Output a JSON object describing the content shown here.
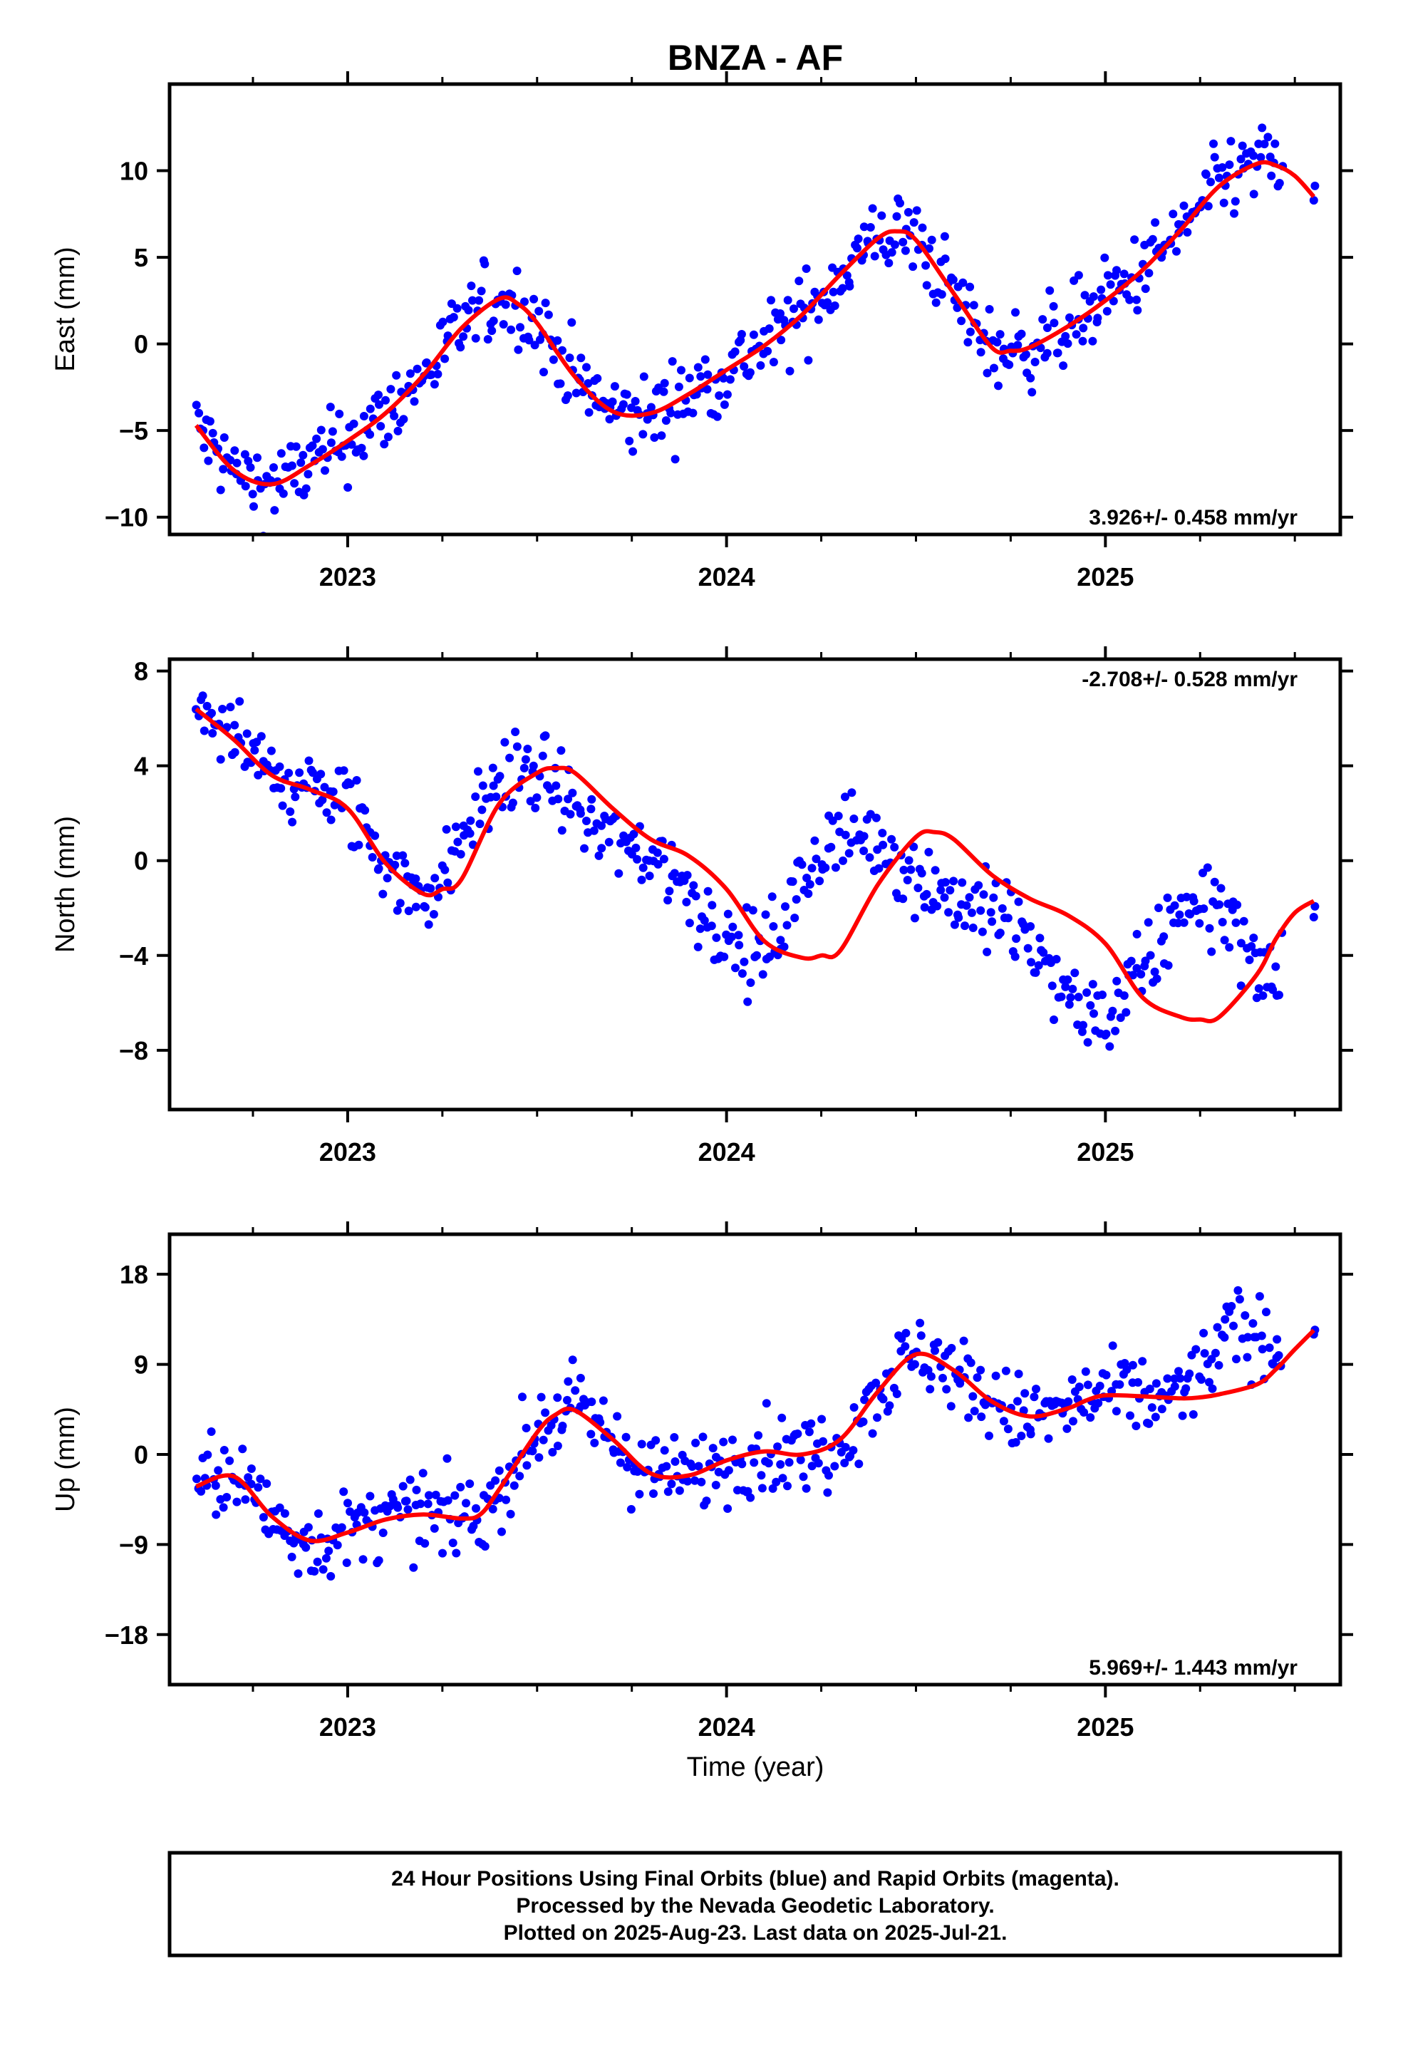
{
  "title": "BNZA - AF",
  "colors": {
    "final_orbit_points": "#0000ff",
    "fit_curve": "#ff0000",
    "frame": "#000000"
  },
  "xlabel": "Time (year)",
  "x_tick_labels": [
    "2023",
    "2024",
    "2025"
  ],
  "footer": {
    "line1": "24 Hour Positions Using Final Orbits (blue) and Rapid Orbits (magenta).",
    "line2": "Processed by the Nevada Geodetic Laboratory.",
    "line3": "Plotted on 2025-Aug-23. Last data on 2025-Jul-21."
  },
  "chart_data": [
    {
      "type": "scatter",
      "ylabel": "East (mm)",
      "rate_label": "3.926+/- 0.458 mm/yr",
      "rate_position": "bottom-right",
      "xlim": [
        2022.53,
        2025.62
      ],
      "ylim": [
        -11,
        15
      ],
      "yticks": [
        -10,
        -5,
        0,
        5,
        10
      ],
      "ytick_labels": [
        "−10",
        "−5",
        "0",
        "5",
        "10"
      ],
      "grid": false,
      "series": [
        {
          "kind": "points",
          "x": [
            2022.6,
            2022.65,
            2022.7,
            2022.75,
            2022.8,
            2022.85,
            2022.9,
            2022.95,
            2023.0,
            2023.05,
            2023.1,
            2023.15,
            2023.2,
            2023.25,
            2023.3,
            2023.35,
            2023.4,
            2023.45,
            2023.5,
            2023.55,
            2023.6,
            2023.65,
            2023.7,
            2023.75,
            2023.8,
            2023.85,
            2023.9,
            2023.95,
            2024.0,
            2024.05,
            2024.1,
            2024.15,
            2024.2,
            2024.25,
            2024.3,
            2024.35,
            2024.4,
            2024.45,
            2024.5,
            2024.55,
            2024.6,
            2024.65,
            2024.7,
            2024.75,
            2024.8,
            2024.85,
            2024.9,
            2024.95,
            2025.0,
            2025.05,
            2025.1,
            2025.15,
            2025.2,
            2025.25,
            2025.3,
            2025.35,
            2025.4,
            2025.45,
            2025.55
          ],
          "y": [
            -4.7,
            -6.2,
            -7.3,
            -8.0,
            -8.1,
            -7.7,
            -7.0,
            -6.3,
            -5.6,
            -4.9,
            -4.0,
            -3.0,
            -1.8,
            -0.5,
            0.9,
            2.0,
            2.6,
            2.3,
            1.2,
            -0.4,
            -1.9,
            -3.1,
            -3.9,
            -4.2,
            -4.0,
            -3.5,
            -2.9,
            -2.2,
            -1.5,
            -0.8,
            -0.1,
            0.7,
            1.7,
            2.8,
            4.0,
            5.2,
            6.1,
            6.5,
            6.0,
            4.6,
            2.9,
            1.1,
            -0.2,
            -0.4,
            -0.2,
            0.3,
            1.0,
            1.8,
            2.5,
            3.4,
            4.3,
            5.4,
            6.6,
            7.9,
            9.1,
            10.0,
            10.4,
            10.3,
            8.5
          ]
        },
        {
          "kind": "fit",
          "x": [
            2022.6,
            2022.7,
            2022.8,
            2022.9,
            2023.0,
            2023.1,
            2023.2,
            2023.3,
            2023.4,
            2023.45,
            2023.5,
            2023.6,
            2023.7,
            2023.8,
            2023.9,
            2024.0,
            2024.1,
            2024.2,
            2024.3,
            2024.4,
            2024.45,
            2024.5,
            2024.6,
            2024.7,
            2024.75,
            2024.8,
            2024.9,
            2025.0,
            2025.1,
            2025.2,
            2025.3,
            2025.4,
            2025.45,
            2025.5,
            2025.55
          ],
          "y": [
            -4.7,
            -7.3,
            -8.1,
            -7.0,
            -5.6,
            -4.0,
            -1.8,
            0.9,
            2.6,
            2.3,
            1.2,
            -1.9,
            -3.9,
            -4.0,
            -2.9,
            -1.5,
            -0.1,
            1.7,
            4.0,
            6.1,
            6.5,
            6.0,
            2.9,
            -0.2,
            -0.4,
            -0.2,
            1.0,
            2.5,
            4.3,
            6.6,
            9.1,
            10.4,
            10.3,
            9.7,
            8.5
          ]
        }
      ]
    },
    {
      "type": "scatter",
      "ylabel": "North (mm)",
      "rate_label": "-2.708+/- 0.528 mm/yr",
      "rate_position": "top-right",
      "xlim": [
        2022.53,
        2025.62
      ],
      "ylim": [
        -10.5,
        8.5
      ],
      "yticks": [
        -8,
        -4,
        0,
        4,
        8
      ],
      "ytick_labels": [
        "−8",
        "−4",
        "0",
        "4",
        "8"
      ],
      "grid": false,
      "series": [
        {
          "kind": "points",
          "x": [
            2022.6,
            2022.65,
            2022.7,
            2022.75,
            2022.8,
            2022.85,
            2022.9,
            2022.95,
            2023.0,
            2023.05,
            2023.1,
            2023.15,
            2023.2,
            2023.25,
            2023.3,
            2023.35,
            2023.4,
            2023.45,
            2023.5,
            2023.55,
            2023.6,
            2023.65,
            2023.7,
            2023.75,
            2023.8,
            2023.85,
            2023.9,
            2023.95,
            2024.0,
            2024.05,
            2024.1,
            2024.15,
            2024.2,
            2024.25,
            2024.3,
            2024.35,
            2024.4,
            2024.45,
            2024.5,
            2024.55,
            2024.6,
            2024.65,
            2024.7,
            2024.75,
            2024.8,
            2024.85,
            2024.9,
            2024.95,
            2025.0,
            2025.05,
            2025.1,
            2025.15,
            2025.2,
            2025.25,
            2025.3,
            2025.35,
            2025.4,
            2025.45,
            2025.55
          ],
          "y": [
            6.4,
            5.9,
            5.1,
            4.2,
            3.6,
            3.3,
            3.0,
            2.7,
            2.2,
            1.2,
            -0.1,
            -1.0,
            -1.4,
            -0.8,
            0.8,
            2.4,
            3.4,
            3.9,
            3.7,
            3.0,
            2.2,
            1.5,
            0.9,
            0.5,
            0.2,
            -0.3,
            -1.2,
            -2.3,
            -3.4,
            -4.1,
            -3.8,
            -2.6,
            -1.0,
            0.3,
            1.0,
            1.2,
            0.9,
            0.2,
            -0.6,
            -1.2,
            -1.6,
            -1.9,
            -2.3,
            -2.8,
            -3.5,
            -4.6,
            -5.8,
            -6.6,
            -6.6,
            -6.0,
            -4.8,
            -3.3,
            -2.0,
            -1.6,
            -1.9,
            -3.0,
            -4.2,
            -5.4,
            -1.7
          ]
        },
        {
          "kind": "fit",
          "x": [
            2022.6,
            2022.7,
            2022.8,
            2022.9,
            2023.0,
            2023.1,
            2023.2,
            2023.25,
            2023.3,
            2023.4,
            2023.5,
            2023.55,
            2023.6,
            2023.7,
            2023.8,
            2023.9,
            2024.0,
            2024.1,
            2024.2,
            2024.25,
            2024.3,
            2024.4,
            2024.5,
            2024.55,
            2024.6,
            2024.7,
            2024.8,
            2024.9,
            2025.0,
            2025.1,
            2025.2,
            2025.25,
            2025.3,
            2025.4,
            2025.45,
            2025.5,
            2025.55
          ],
          "y": [
            6.4,
            5.1,
            3.6,
            3.0,
            2.2,
            -0.1,
            -1.4,
            -1.2,
            -0.8,
            2.4,
            3.7,
            3.9,
            3.7,
            2.2,
            0.9,
            0.2,
            -1.2,
            -3.4,
            -4.1,
            -4.0,
            -3.8,
            -1.0,
            1.0,
            1.2,
            0.9,
            -0.6,
            -1.6,
            -2.3,
            -3.5,
            -5.8,
            -6.6,
            -6.7,
            -6.6,
            -4.8,
            -3.3,
            -2.2,
            -1.7
          ]
        }
      ]
    },
    {
      "type": "scatter",
      "ylabel": "Up (mm)",
      "rate_label": "5.969+/- 1.443 mm/yr",
      "rate_position": "bottom-right",
      "xlim": [
        2022.53,
        2025.62
      ],
      "ylim": [
        -23,
        22
      ],
      "yticks": [
        -18,
        -9,
        0,
        9,
        18
      ],
      "ytick_labels": [
        "−18",
        "−9",
        "0",
        "9",
        "18"
      ],
      "grid": false,
      "series": [
        {
          "kind": "points",
          "x": [
            2022.6,
            2022.65,
            2022.7,
            2022.75,
            2022.8,
            2022.85,
            2022.9,
            2022.95,
            2023.0,
            2023.05,
            2023.1,
            2023.15,
            2023.2,
            2023.25,
            2023.3,
            2023.35,
            2023.4,
            2023.45,
            2023.5,
            2023.55,
            2023.6,
            2023.65,
            2023.7,
            2023.75,
            2023.8,
            2023.85,
            2023.9,
            2023.95,
            2024.0,
            2024.05,
            2024.1,
            2024.15,
            2024.2,
            2024.25,
            2024.3,
            2024.35,
            2024.4,
            2024.45,
            2024.5,
            2024.55,
            2024.6,
            2024.65,
            2024.7,
            2024.75,
            2024.8,
            2024.85,
            2024.9,
            2024.95,
            2025.0,
            2025.05,
            2025.1,
            2025.15,
            2025.2,
            2025.25,
            2025.3,
            2025.35,
            2025.4,
            2025.45,
            2025.55
          ],
          "y": [
            -3.2,
            -2.0,
            -2.2,
            -4.0,
            -6.2,
            -8.2,
            -8.6,
            -8.4,
            -7.8,
            -7.1,
            -6.5,
            -6.1,
            -6.0,
            -6.2,
            -6.4,
            -6.0,
            -3.5,
            -0.5,
            2.2,
            4.0,
            4.4,
            3.4,
            1.5,
            -0.5,
            -1.9,
            -2.5,
            -2.1,
            -1.3,
            -0.6,
            0.0,
            0.3,
            0.2,
            0.0,
            0.2,
            1.5,
            3.8,
            6.3,
            8.6,
            10.0,
            9.8,
            8.4,
            6.6,
            5.3,
            4.3,
            3.8,
            3.9,
            4.6,
            5.4,
            5.9,
            6.0,
            5.8,
            5.6,
            6.2,
            8.2,
            10.8,
            12.5,
            12.0,
            11.0,
            12.4
          ]
        },
        {
          "kind": "fit",
          "x": [
            2022.6,
            2022.7,
            2022.8,
            2022.9,
            2023.0,
            2023.1,
            2023.2,
            2023.3,
            2023.35,
            2023.4,
            2023.5,
            2023.55,
            2023.6,
            2023.7,
            2023.8,
            2023.9,
            2024.0,
            2024.1,
            2024.2,
            2024.3,
            2024.4,
            2024.5,
            2024.6,
            2024.7,
            2024.8,
            2024.9,
            2024.95,
            2025.0,
            2025.1,
            2025.2,
            2025.25,
            2025.3,
            2025.4,
            2025.45,
            2025.5,
            2025.55
          ],
          "y": [
            -3.2,
            -2.2,
            -6.2,
            -8.6,
            -7.8,
            -6.5,
            -6.0,
            -6.4,
            -6.0,
            -3.5,
            2.2,
            4.0,
            4.4,
            1.5,
            -1.9,
            -2.1,
            -0.6,
            0.3,
            0.0,
            1.5,
            6.3,
            10.0,
            8.4,
            5.3,
            3.8,
            4.6,
            5.4,
            5.9,
            5.8,
            5.6,
            5.7,
            6.0,
            7.0,
            8.5,
            10.5,
            12.4
          ]
        }
      ]
    }
  ]
}
